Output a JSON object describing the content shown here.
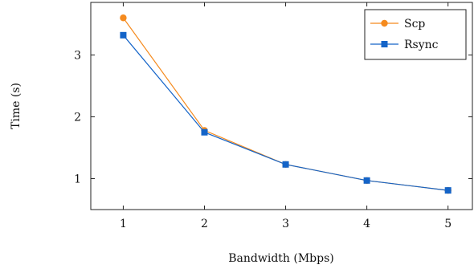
{
  "chart_data": {
    "type": "line",
    "xlabel": "Bandwidth (Mbps)",
    "ylabel": "Time (s)",
    "x": [
      1,
      2,
      3,
      4,
      5
    ],
    "x_ticks": [
      "1",
      "2",
      "3",
      "4",
      "5"
    ],
    "y_ticks": [
      "1",
      "2",
      "3"
    ],
    "xlim": [
      0.6,
      5.3
    ],
    "ylim": [
      0.5,
      3.85
    ],
    "grid": false,
    "legend_position": "top-right",
    "series": [
      {
        "name": "Scp",
        "values": [
          3.6,
          1.78,
          1.23,
          0.97,
          0.81
        ],
        "color": "#f58b1f",
        "marker": "circle"
      },
      {
        "name": "Rsync",
        "values": [
          3.32,
          1.75,
          1.23,
          0.97,
          0.81
        ],
        "color": "#1464c8",
        "marker": "square"
      }
    ]
  }
}
